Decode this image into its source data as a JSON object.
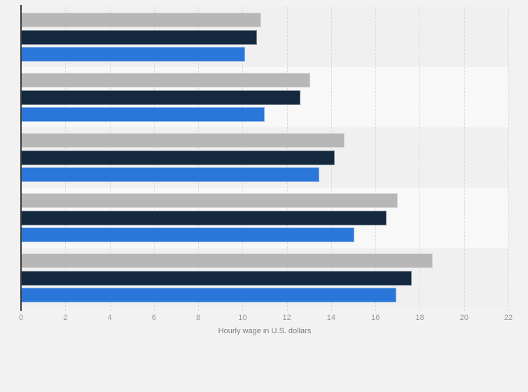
{
  "chart_data": {
    "type": "bar",
    "orientation": "horizontal",
    "title": "",
    "xlabel": "Hourly wage in U.S. dollars",
    "ylabel": "",
    "xlim": [
      0,
      22
    ],
    "xticks": [
      0,
      2,
      4,
      6,
      8,
      10,
      12,
      14,
      16,
      18,
      20,
      22
    ],
    "grid": "vertical dashed gridlines every 2 units",
    "legend_position": "none",
    "categories": [
      "",
      "",
      "",
      "",
      ""
    ],
    "series": [
      {
        "name": "gray",
        "color": "#b7b7b7",
        "values": [
          10.85,
          13.05,
          14.6,
          17.0,
          18.6
        ]
      },
      {
        "name": "dark-navy",
        "color": "#14293f",
        "values": [
          10.65,
          12.6,
          14.15,
          16.5,
          17.65
        ]
      },
      {
        "name": "blue",
        "color": "#2b76d9",
        "values": [
          10.1,
          11.0,
          13.45,
          15.05,
          16.95
        ]
      }
    ]
  },
  "style": {
    "page_background": "#f2f2f2",
    "band_color_odd": "#f0f0f0",
    "band_color_even": "#f8f8f8",
    "gridline_color": "#d9d9d9",
    "axis_line_color": "#3c3c3c",
    "tick_label_color": "#999999",
    "axis_title_color": "#7d7d7d"
  }
}
